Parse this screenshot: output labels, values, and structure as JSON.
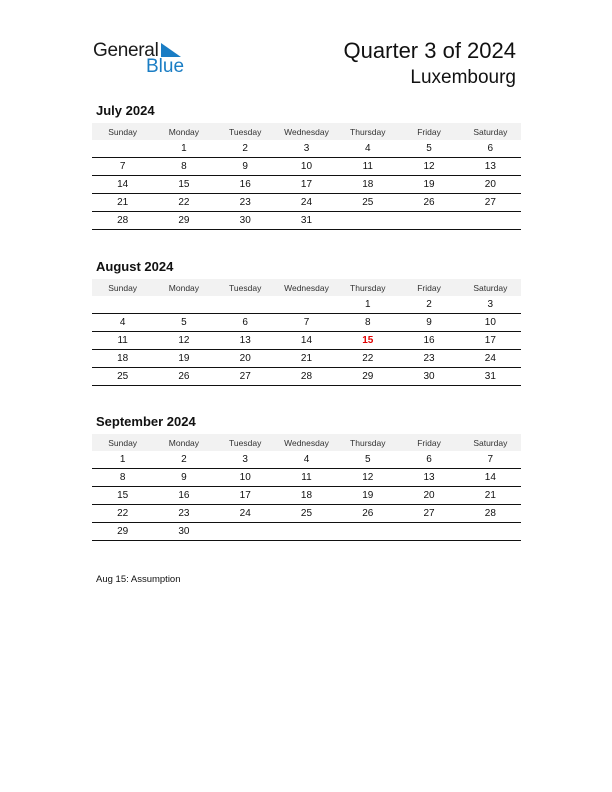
{
  "logo": {
    "text_general": "General",
    "text_blue": "Blue",
    "brand_color": "#1a7dc4"
  },
  "header": {
    "title": "Quarter 3 of 2024",
    "country": "Luxembourg"
  },
  "weekdays": [
    "Sunday",
    "Monday",
    "Tuesday",
    "Wednesday",
    "Thursday",
    "Friday",
    "Saturday"
  ],
  "holiday_color": "#e00000",
  "months": [
    {
      "title": "July 2024",
      "weeks": [
        [
          "",
          "1",
          "2",
          "3",
          "4",
          "5",
          "6"
        ],
        [
          "7",
          "8",
          "9",
          "10",
          "11",
          "12",
          "13"
        ],
        [
          "14",
          "15",
          "16",
          "17",
          "18",
          "19",
          "20"
        ],
        [
          "21",
          "22",
          "23",
          "24",
          "25",
          "26",
          "27"
        ],
        [
          "28",
          "29",
          "30",
          "31",
          "",
          "",
          ""
        ]
      ],
      "holidays": []
    },
    {
      "title": "August 2024",
      "weeks": [
        [
          "",
          "",
          "",
          "",
          "1",
          "2",
          "3"
        ],
        [
          "4",
          "5",
          "6",
          "7",
          "8",
          "9",
          "10"
        ],
        [
          "11",
          "12",
          "13",
          "14",
          "15",
          "16",
          "17"
        ],
        [
          "18",
          "19",
          "20",
          "21",
          "22",
          "23",
          "24"
        ],
        [
          "25",
          "26",
          "27",
          "28",
          "29",
          "30",
          "31"
        ]
      ],
      "holidays": [
        "15"
      ]
    },
    {
      "title": "September 2024",
      "weeks": [
        [
          "1",
          "2",
          "3",
          "4",
          "5",
          "6",
          "7"
        ],
        [
          "8",
          "9",
          "10",
          "11",
          "12",
          "13",
          "14"
        ],
        [
          "15",
          "16",
          "17",
          "18",
          "19",
          "20",
          "21"
        ],
        [
          "22",
          "23",
          "24",
          "25",
          "26",
          "27",
          "28"
        ],
        [
          "29",
          "30",
          "",
          "",
          "",
          "",
          ""
        ]
      ],
      "holidays": []
    }
  ],
  "notes": [
    "Aug 15: Assumption"
  ]
}
